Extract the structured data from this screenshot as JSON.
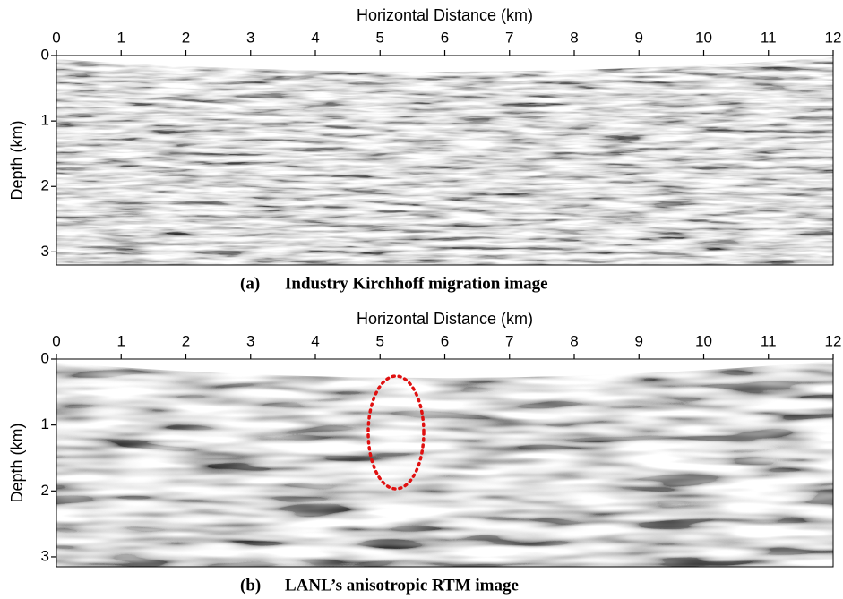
{
  "panels": [
    {
      "x_label": "Horizontal Distance (km)",
      "y_label": "Depth (km)",
      "xlim": [
        0,
        12
      ],
      "ylim": [
        0,
        3.2
      ],
      "xticks": [
        0,
        1,
        2,
        3,
        4,
        5,
        6,
        7,
        8,
        9,
        10,
        11,
        12
      ],
      "yticks": [
        0,
        1,
        2,
        3
      ],
      "label": "(a)",
      "caption": "Industry Kirchhoff migration image"
    },
    {
      "x_label": "Horizontal Distance (km)",
      "y_label": "Depth (km)",
      "xlim": [
        0,
        12
      ],
      "ylim": [
        0,
        3.15
      ],
      "xticks": [
        0,
        1,
        2,
        3,
        4,
        5,
        6,
        7,
        8,
        9,
        10,
        11,
        12
      ],
      "yticks": [
        0,
        1,
        2,
        3
      ],
      "label": "(b)",
      "caption": "LANL’s anisotropic RTM image"
    }
  ]
}
